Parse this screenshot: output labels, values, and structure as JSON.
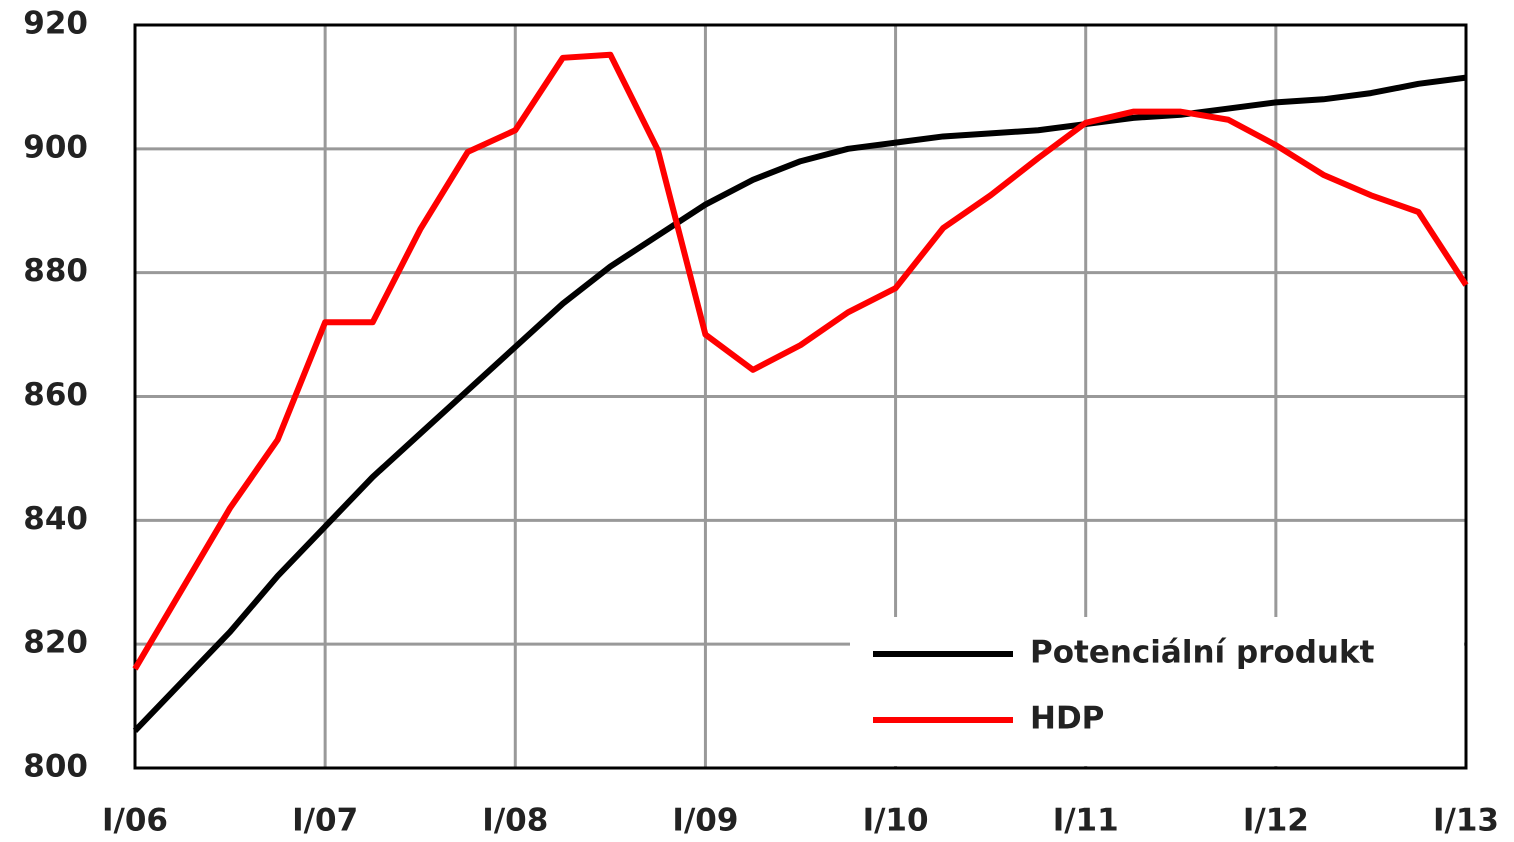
{
  "chart_data": {
    "type": "line",
    "categories": [
      "I/06",
      null,
      null,
      null,
      "I/07",
      null,
      null,
      null,
      "I/08",
      null,
      null,
      null,
      "I/09",
      null,
      null,
      null,
      "I/10",
      null,
      null,
      null,
      "I/11",
      null,
      null,
      null,
      "I/12",
      null,
      null,
      null,
      "I/13"
    ],
    "series": [
      {
        "name": "Potenciální produkt",
        "color": "#000000",
        "values": [
          806,
          814,
          822,
          831,
          839,
          847,
          854,
          861,
          868,
          875,
          881,
          886,
          891,
          895,
          898,
          900,
          901,
          902,
          902.5,
          903,
          904,
          905,
          905.5,
          906.5,
          907.5,
          908,
          909,
          910.5,
          911.5
        ]
      },
      {
        "name": "HDP",
        "color": "#ff0000",
        "values": [
          816,
          829,
          842,
          853,
          872,
          872,
          887,
          899.5,
          903,
          914.7,
          915.2,
          899.8,
          870,
          864.3,
          868.3,
          873.6,
          877.5,
          887.2,
          892.5,
          898.5,
          904.2,
          906,
          906,
          904.7,
          900.6,
          895.8,
          892.5,
          889.8,
          878
        ]
      }
    ],
    "ylim": [
      800,
      920
    ],
    "yticks": [
      800,
      820,
      840,
      860,
      880,
      900,
      920
    ],
    "grid": true,
    "legend": "lower right"
  }
}
